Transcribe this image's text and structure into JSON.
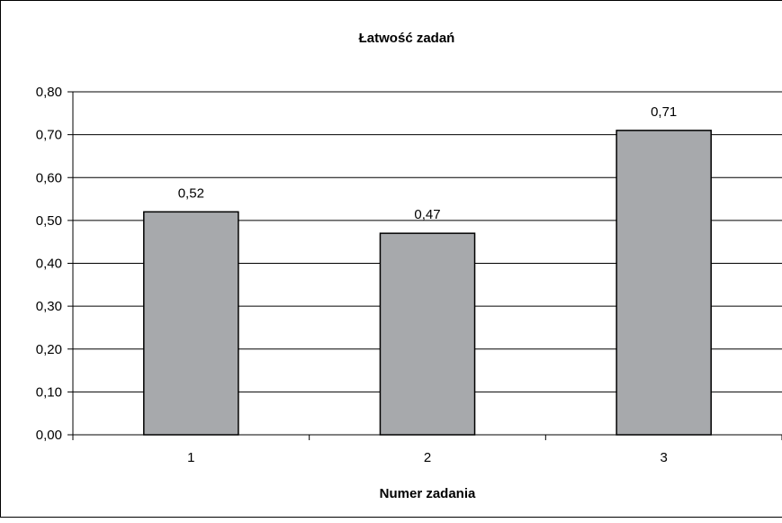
{
  "chart_data": {
    "type": "bar",
    "title": "Łatwość zadań",
    "xlabel": "Numer zadania",
    "ylabel": "",
    "categories": [
      "1",
      "2",
      "3"
    ],
    "values": [
      0.52,
      0.47,
      0.71
    ],
    "data_labels": [
      "0,52",
      "0,47",
      "0,71"
    ],
    "ylim": [
      0,
      0.8
    ],
    "yticks": [
      0,
      0.1,
      0.2,
      0.3,
      0.4,
      0.5,
      0.6,
      0.7,
      0.8
    ],
    "ytick_labels": [
      "0,00",
      "0,10",
      "0,20",
      "0,30",
      "0,40",
      "0,50",
      "0,60",
      "0,70",
      "0,80"
    ],
    "grid": true,
    "legend": "none",
    "colors": {
      "bar_fill": "#a7a9ac",
      "bar_stroke": "#000000",
      "grid": "#000000",
      "background": "#ffffff"
    }
  }
}
